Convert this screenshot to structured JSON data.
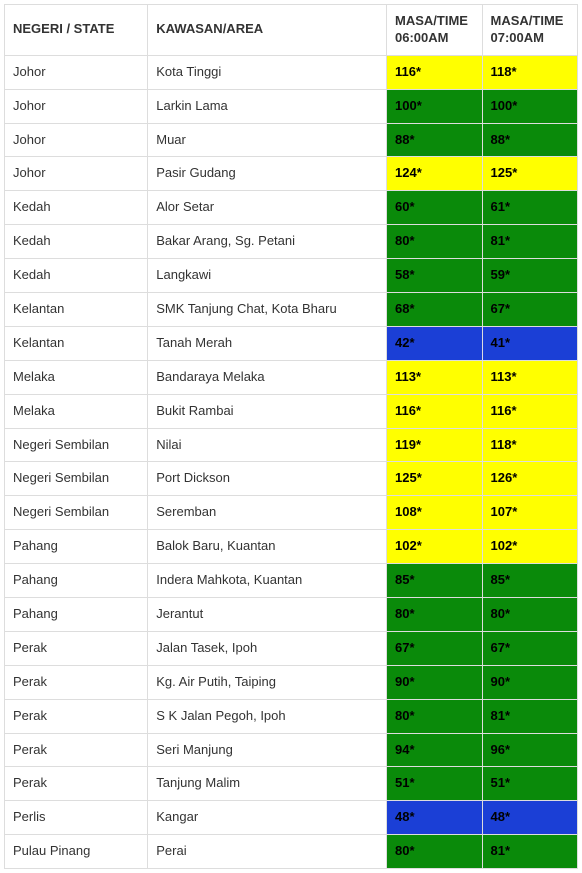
{
  "colors": {
    "yellow": "#ffff00",
    "green": "#0a8a0a",
    "blue": "#1b3fd6",
    "border": "#dddddd",
    "text": "#333333",
    "celltext": "#000000"
  },
  "columns": [
    {
      "key": "state",
      "label": "NEGERI / STATE"
    },
    {
      "key": "area",
      "label": "KAWASAN/AREA"
    },
    {
      "key": "t0600",
      "label": "MASA/TIME 06:00AM"
    },
    {
      "key": "t0700",
      "label": "MASA/TIME 07:00AM"
    }
  ],
  "rows": [
    {
      "state": "Johor",
      "area": "Kota Tinggi",
      "t0600": {
        "v": "116*",
        "c": "yellow"
      },
      "t0700": {
        "v": "118*",
        "c": "yellow"
      }
    },
    {
      "state": "Johor",
      "area": "Larkin Lama",
      "t0600": {
        "v": "100*",
        "c": "green"
      },
      "t0700": {
        "v": "100*",
        "c": "green"
      }
    },
    {
      "state": "Johor",
      "area": "Muar",
      "t0600": {
        "v": "88*",
        "c": "green"
      },
      "t0700": {
        "v": "88*",
        "c": "green"
      }
    },
    {
      "state": "Johor",
      "area": "Pasir Gudang",
      "t0600": {
        "v": "124*",
        "c": "yellow"
      },
      "t0700": {
        "v": "125*",
        "c": "yellow"
      }
    },
    {
      "state": "Kedah",
      "area": "Alor Setar",
      "t0600": {
        "v": "60*",
        "c": "green"
      },
      "t0700": {
        "v": "61*",
        "c": "green"
      }
    },
    {
      "state": "Kedah",
      "area": "Bakar Arang, Sg. Petani",
      "t0600": {
        "v": "80*",
        "c": "green"
      },
      "t0700": {
        "v": "81*",
        "c": "green"
      }
    },
    {
      "state": "Kedah",
      "area": "Langkawi",
      "t0600": {
        "v": "58*",
        "c": "green"
      },
      "t0700": {
        "v": "59*",
        "c": "green"
      }
    },
    {
      "state": "Kelantan",
      "area": "SMK Tanjung Chat, Kota Bharu",
      "t0600": {
        "v": "68*",
        "c": "green"
      },
      "t0700": {
        "v": "67*",
        "c": "green"
      }
    },
    {
      "state": "Kelantan",
      "area": "Tanah Merah",
      "t0600": {
        "v": "42*",
        "c": "blue"
      },
      "t0700": {
        "v": "41*",
        "c": "blue"
      }
    },
    {
      "state": "Melaka",
      "area": "Bandaraya Melaka",
      "t0600": {
        "v": "113*",
        "c": "yellow"
      },
      "t0700": {
        "v": "113*",
        "c": "yellow"
      }
    },
    {
      "state": "Melaka",
      "area": "Bukit Rambai",
      "t0600": {
        "v": "116*",
        "c": "yellow"
      },
      "t0700": {
        "v": "116*",
        "c": "yellow"
      }
    },
    {
      "state": "Negeri Sembilan",
      "area": "Nilai",
      "t0600": {
        "v": "119*",
        "c": "yellow"
      },
      "t0700": {
        "v": "118*",
        "c": "yellow"
      }
    },
    {
      "state": "Negeri Sembilan",
      "area": "Port Dickson",
      "t0600": {
        "v": "125*",
        "c": "yellow"
      },
      "t0700": {
        "v": "126*",
        "c": "yellow"
      }
    },
    {
      "state": "Negeri Sembilan",
      "area": "Seremban",
      "t0600": {
        "v": "108*",
        "c": "yellow"
      },
      "t0700": {
        "v": "107*",
        "c": "yellow"
      }
    },
    {
      "state": "Pahang",
      "area": "Balok Baru, Kuantan",
      "t0600": {
        "v": "102*",
        "c": "yellow"
      },
      "t0700": {
        "v": "102*",
        "c": "yellow"
      }
    },
    {
      "state": "Pahang",
      "area": "Indera Mahkota, Kuantan",
      "t0600": {
        "v": "85*",
        "c": "green"
      },
      "t0700": {
        "v": "85*",
        "c": "green"
      }
    },
    {
      "state": "Pahang",
      "area": "Jerantut",
      "t0600": {
        "v": "80*",
        "c": "green"
      },
      "t0700": {
        "v": "80*",
        "c": "green"
      }
    },
    {
      "state": "Perak",
      "area": "Jalan Tasek, Ipoh",
      "t0600": {
        "v": "67*",
        "c": "green"
      },
      "t0700": {
        "v": "67*",
        "c": "green"
      }
    },
    {
      "state": "Perak",
      "area": "Kg. Air Putih, Taiping",
      "t0600": {
        "v": "90*",
        "c": "green"
      },
      "t0700": {
        "v": "90*",
        "c": "green"
      }
    },
    {
      "state": "Perak",
      "area": "S K Jalan Pegoh, Ipoh",
      "t0600": {
        "v": "80*",
        "c": "green"
      },
      "t0700": {
        "v": "81*",
        "c": "green"
      }
    },
    {
      "state": "Perak",
      "area": "Seri Manjung",
      "t0600": {
        "v": "94*",
        "c": "green"
      },
      "t0700": {
        "v": "96*",
        "c": "green"
      }
    },
    {
      "state": "Perak",
      "area": "Tanjung Malim",
      "t0600": {
        "v": "51*",
        "c": "green"
      },
      "t0700": {
        "v": "51*",
        "c": "green"
      }
    },
    {
      "state": "Perlis",
      "area": "Kangar",
      "t0600": {
        "v": "48*",
        "c": "blue"
      },
      "t0700": {
        "v": "48*",
        "c": "blue"
      }
    },
    {
      "state": "Pulau Pinang",
      "area": "Perai",
      "t0600": {
        "v": "80*",
        "c": "green"
      },
      "t0700": {
        "v": "81*",
        "c": "green"
      }
    }
  ]
}
